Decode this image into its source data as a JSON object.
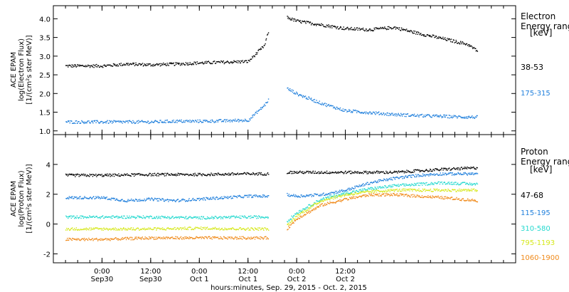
{
  "chart_data": [
    {
      "type": "scatter",
      "panel": "electron",
      "ylabel_lines": [
        "ACE EPAM",
        "log(Electron Flux)",
        "[1/(cm²s ster MeV)]"
      ],
      "ylim": [
        0.9,
        4.35
      ],
      "yticks": [
        1.0,
        1.5,
        2.0,
        2.5,
        3.0,
        3.5,
        4.0
      ],
      "ytick_labels": [
        "1.0",
        "1.5",
        "2.0",
        "2.5",
        "3.0",
        "3.5",
        "4.0"
      ],
      "legend_title_lines": [
        "Electron",
        "Energy ranges",
        "[keV]"
      ],
      "data_gap_hours": [
        41.0,
        45.5
      ],
      "series": [
        {
          "name": "38-53",
          "color": "#000000",
          "x": [
            -9,
            0,
            6,
            12,
            18,
            24,
            30,
            36,
            40,
            41,
            45.5,
            48,
            54,
            60,
            66,
            72,
            78,
            84,
            90,
            92.5
          ],
          "y": [
            2.75,
            2.75,
            2.8,
            2.78,
            2.8,
            2.83,
            2.85,
            2.87,
            3.3,
            3.7,
            4.05,
            3.95,
            3.85,
            3.75,
            3.72,
            3.78,
            3.62,
            3.48,
            3.33,
            3.15
          ]
        },
        {
          "name": "175-315",
          "color": "#1f7fdc",
          "x": [
            -9,
            0,
            6,
            12,
            18,
            24,
            30,
            36,
            40,
            41,
            45.5,
            48,
            54,
            60,
            66,
            72,
            78,
            84,
            90,
            92.5
          ],
          "y": [
            1.25,
            1.25,
            1.25,
            1.25,
            1.27,
            1.27,
            1.28,
            1.3,
            1.7,
            1.85,
            2.15,
            2.0,
            1.75,
            1.55,
            1.5,
            1.45,
            1.42,
            1.4,
            1.38,
            1.38
          ]
        }
      ]
    },
    {
      "type": "scatter",
      "panel": "proton",
      "ylabel_lines": [
        "ACE EPAM",
        "log(Proton Flux)",
        "[1/(cm²s ster MeV)]"
      ],
      "ylim": [
        -2.6,
        6.0
      ],
      "yticks": [
        -2,
        0,
        2,
        4
      ],
      "ytick_labels": [
        "-2",
        "0",
        "2",
        "4"
      ],
      "legend_title_lines": [
        "Proton",
        "Energy ranges",
        "[keV]"
      ],
      "data_gap_hours": [
        41.0,
        45.5
      ],
      "series": [
        {
          "name": "47-68",
          "color": "#000000",
          "x": [
            -9,
            0,
            12,
            24,
            36,
            41,
            45.5,
            54,
            60,
            66,
            72,
            78,
            84,
            92.5
          ],
          "y": [
            3.3,
            3.3,
            3.35,
            3.35,
            3.4,
            3.4,
            3.5,
            3.5,
            3.5,
            3.5,
            3.5,
            3.6,
            3.7,
            3.8
          ]
        },
        {
          "name": "115-195",
          "color": "#1f7fdc",
          "x": [
            -9,
            0,
            6,
            12,
            18,
            24,
            30,
            36,
            41,
            45.5,
            48,
            54,
            60,
            66,
            72,
            78,
            84,
            92.5
          ],
          "y": [
            1.8,
            1.8,
            1.6,
            1.7,
            1.6,
            1.7,
            1.8,
            1.9,
            1.9,
            2.0,
            1.9,
            2.0,
            2.3,
            2.8,
            3.1,
            3.3,
            3.4,
            3.4
          ]
        },
        {
          "name": "310-580",
          "color": "#25d9cf",
          "x": [
            -9,
            0,
            12,
            24,
            36,
            41,
            45.5,
            48,
            54,
            60,
            66,
            72,
            78,
            84,
            92.5
          ],
          "y": [
            0.5,
            0.5,
            0.5,
            0.45,
            0.5,
            0.5,
            0.2,
            0.8,
            1.7,
            2.1,
            2.4,
            2.6,
            2.7,
            2.8,
            2.7
          ]
        },
        {
          "name": "795-1193",
          "color": "#d6e81c",
          "x": [
            -9,
            0,
            12,
            24,
            36,
            41,
            45.5,
            48,
            54,
            60,
            66,
            72,
            78,
            84,
            92.5
          ],
          "y": [
            -0.3,
            -0.3,
            -0.3,
            -0.25,
            -0.3,
            -0.3,
            -0.1,
            0.6,
            1.6,
            2.0,
            2.2,
            2.3,
            2.3,
            2.3,
            2.3
          ]
        },
        {
          "name": "1060-1900",
          "color": "#f08a1a",
          "x": [
            -9,
            0,
            12,
            24,
            36,
            41,
            45.5,
            48,
            54,
            60,
            66,
            72,
            78,
            84,
            92.5
          ],
          "y": [
            -1.0,
            -1.0,
            -0.9,
            -0.9,
            -0.9,
            -0.9,
            -0.3,
            0.4,
            1.3,
            1.7,
            2.0,
            2.0,
            1.9,
            1.8,
            1.6
          ]
        }
      ]
    }
  ],
  "time_axis": {
    "xlim_hours": [
      -12,
      102
    ],
    "ticks": [
      {
        "hours": 0,
        "time": "0:00",
        "date": "Sep30"
      },
      {
        "hours": 12,
        "time": "12:00",
        "date": "Sep30"
      },
      {
        "hours": 24,
        "time": "0:00",
        "date": "Oct 1"
      },
      {
        "hours": 36,
        "time": "12:00",
        "date": "Oct 1"
      },
      {
        "hours": 48,
        "time": "0:00",
        "date": "Oct 2"
      },
      {
        "hours": 60,
        "time": "12:00",
        "date": "Oct 2"
      }
    ],
    "minor_step_hours": 3,
    "xlabel": "hours:minutes, Sep. 29, 2015 - Oct. 2, 2015"
  }
}
